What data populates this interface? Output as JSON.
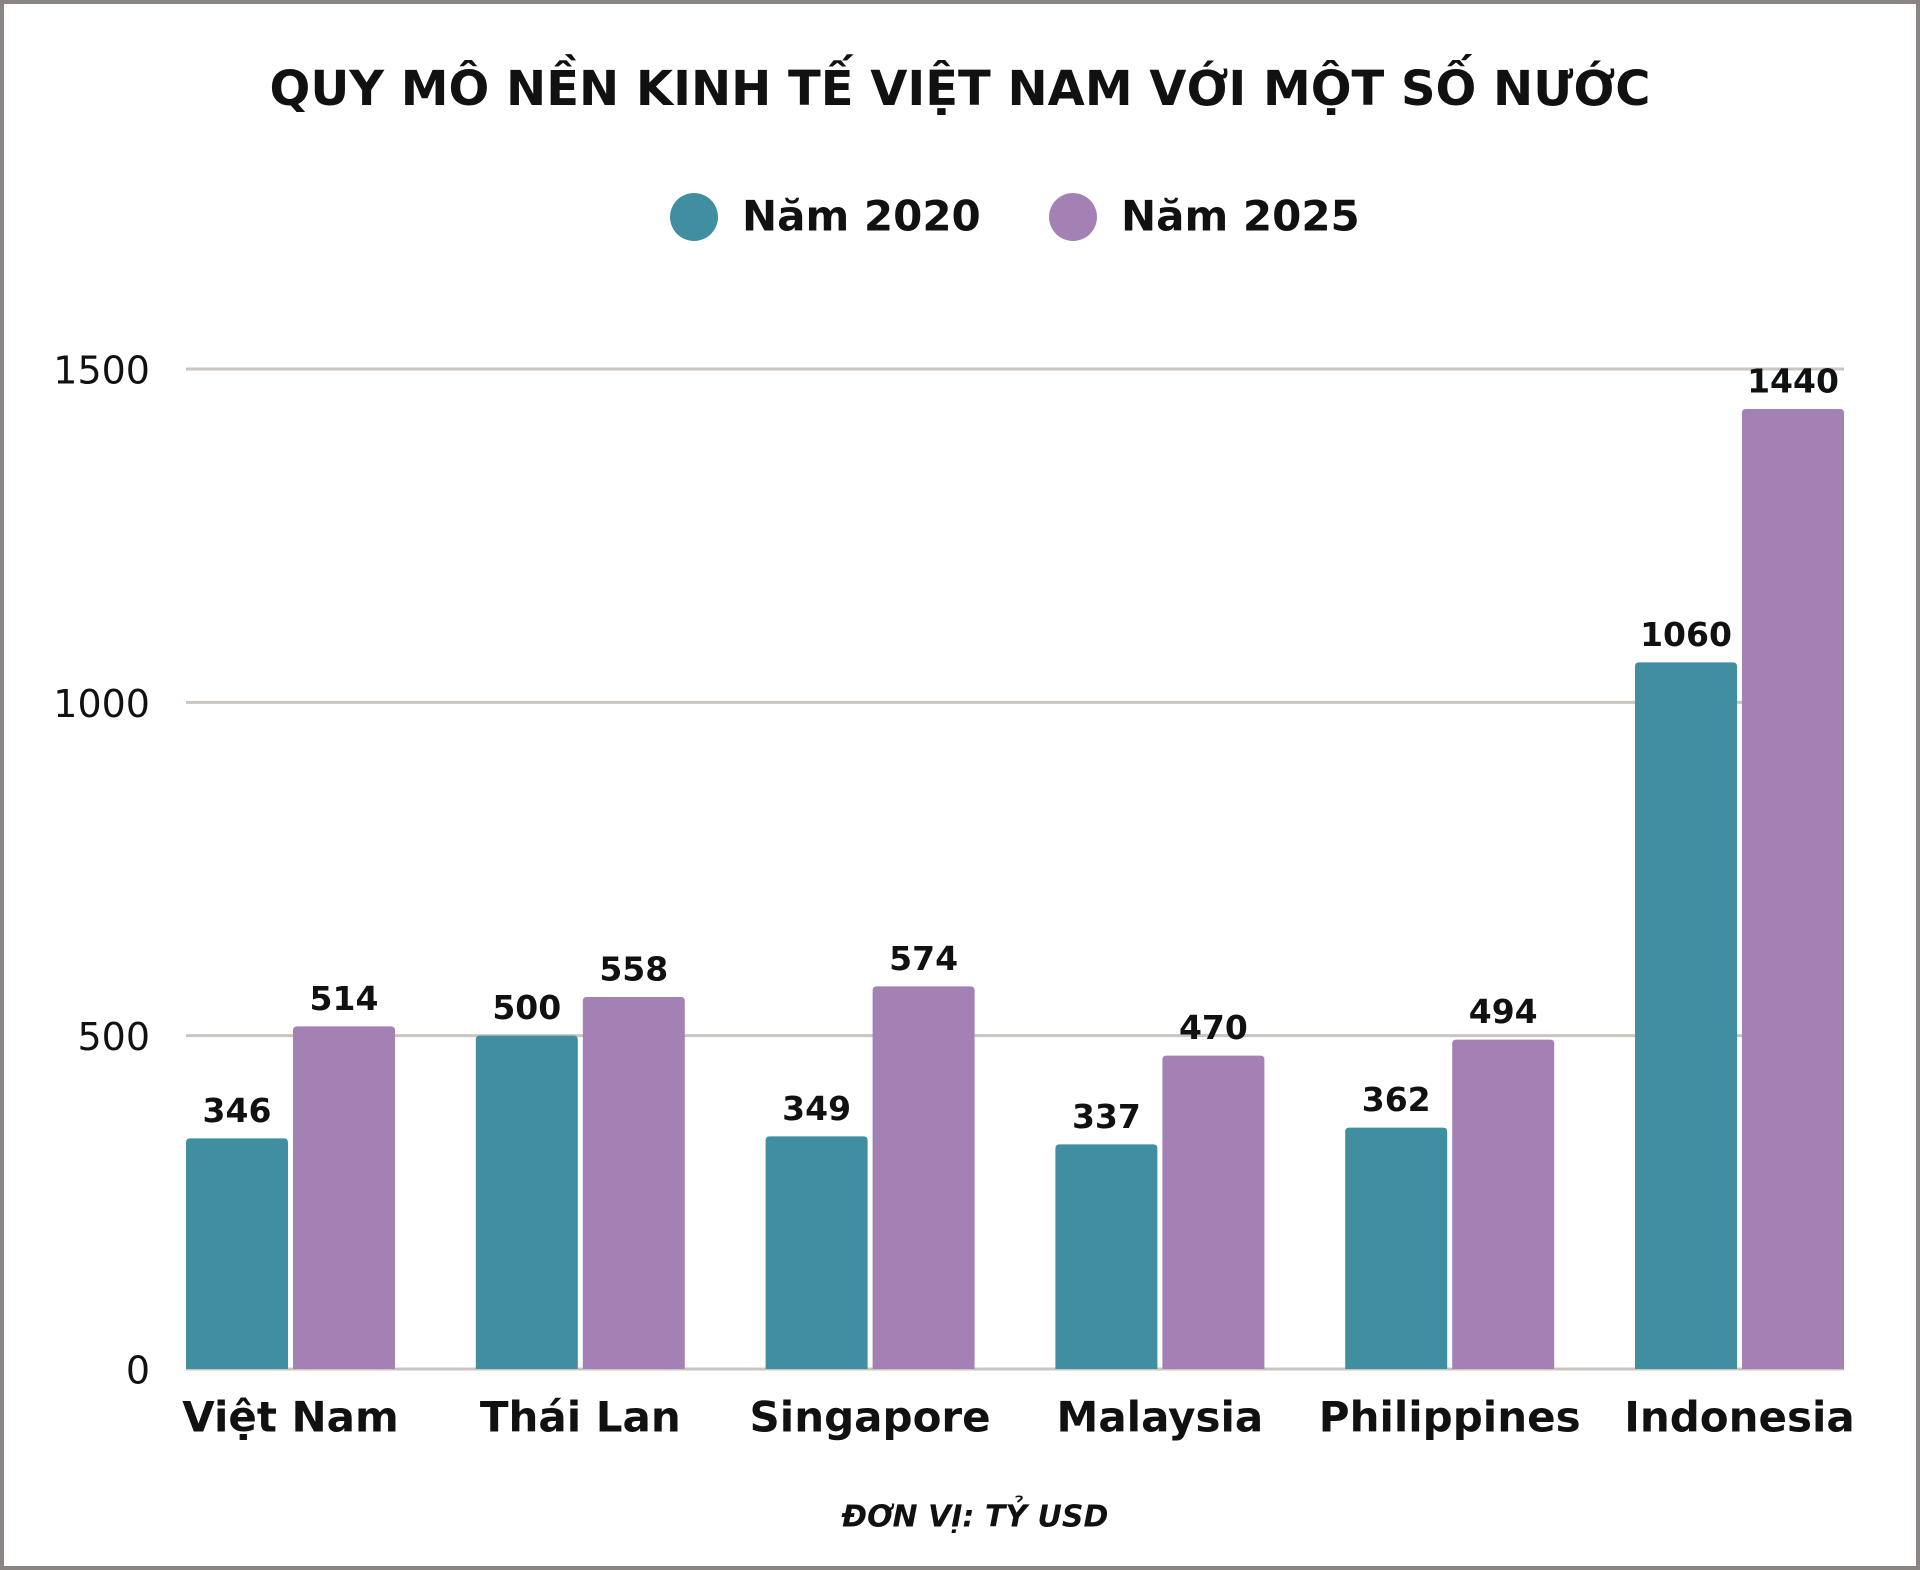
{
  "chart_data": {
    "type": "bar",
    "title": "QUY MÔ NỀN KINH TẾ VIỆT NAM VỚI MỘT SỐ NƯỚC",
    "unit": "ĐƠN VỊ: TỶ USD",
    "categories": [
      "Việt Nam",
      "Thái Lan",
      "Singapore",
      "Malaysia",
      "Philippines",
      "Indonesia"
    ],
    "series": [
      {
        "name": "Năm 2020",
        "color": "#3f8fa1",
        "values": [
          346,
          500,
          349,
          337,
          362,
          1060
        ]
      },
      {
        "name": "Năm 2025",
        "color": "#a381b4",
        "values": [
          514,
          558,
          574,
          470,
          494,
          1440
        ]
      }
    ],
    "ylim": [
      0,
      1500
    ],
    "yticks": [
      0,
      500,
      1000,
      1500
    ],
    "grid": true,
    "legend": "top"
  }
}
